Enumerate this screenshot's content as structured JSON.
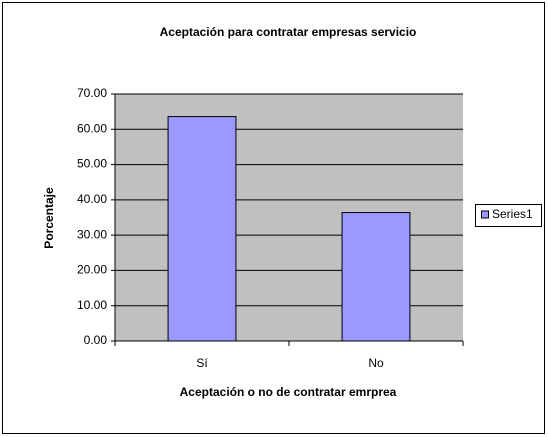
{
  "chart_data": {
    "type": "bar",
    "title": "Aceptación para contratar empresas servicio",
    "x_label": "Aceptación o no de contratar emrprea",
    "y_label": "Porcentaje",
    "categories": [
      "Sí",
      "No"
    ],
    "series": [
      {
        "name": "Series1",
        "color": "#9999ff",
        "values": [
          63.6,
          36.4
        ]
      }
    ],
    "ylim": [
      0,
      70
    ],
    "yticks": [
      {
        "value": 0,
        "label": "0.00"
      },
      {
        "value": 10,
        "label": "10.00"
      },
      {
        "value": 20,
        "label": "20.00"
      },
      {
        "value": 30,
        "label": "30.00"
      },
      {
        "value": 40,
        "label": "40.00"
      },
      {
        "value": 50,
        "label": "50.00"
      },
      {
        "value": 60,
        "label": "60.00"
      },
      {
        "value": 70,
        "label": "70.00"
      }
    ],
    "grid": true,
    "legend": "right"
  }
}
